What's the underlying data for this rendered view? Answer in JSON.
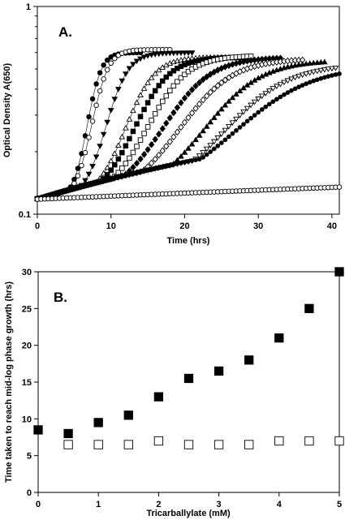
{
  "chart_data": [
    {
      "type": "line",
      "panel_label": "A.",
      "xlabel": "Time (hrs)",
      "ylabel": "Optical Density A(650)",
      "xlim": [
        0,
        41
      ],
      "ylim": [
        0.1,
        1
      ],
      "yscale": "log",
      "x_ticks": [
        0,
        10,
        20,
        30,
        40
      ],
      "y_tick_labels": [
        "0.1",
        "1"
      ],
      "grid": false,
      "series": [
        {
          "marker": "circle-filled",
          "lag": 7.5,
          "rate": 2.2,
          "maxOD": 0.6,
          "end": 14
        },
        {
          "marker": "circle-open",
          "lag": 8.3,
          "rate": 1.85,
          "maxOD": 0.62,
          "end": 18
        },
        {
          "marker": "triangle-down-filled",
          "lag": 10.5,
          "rate": 1.4,
          "maxOD": 0.6,
          "end": 21
        },
        {
          "marker": "triangle-up-open",
          "lag": 13.5,
          "rate": 1.05,
          "maxOD": 0.57,
          "end": 26
        },
        {
          "marker": "square-filled",
          "lag": 15.0,
          "rate": 0.88,
          "maxOD": 0.57,
          "end": 28
        },
        {
          "marker": "square-open",
          "lag": 17.0,
          "rate": 0.78,
          "maxOD": 0.58,
          "end": 29
        },
        {
          "marker": "diamond-filled",
          "lag": 19.5,
          "rate": 0.64,
          "maxOD": 0.57,
          "end": 33
        },
        {
          "marker": "diamond-open",
          "lag": 22.0,
          "rate": 0.58,
          "maxOD": 0.56,
          "end": 36
        },
        {
          "marker": "triangle-up-filled",
          "lag": 25.5,
          "rate": 0.54,
          "maxOD": 0.55,
          "end": 39
        },
        {
          "marker": "triangle-down-open",
          "lag": 28.5,
          "rate": 0.47,
          "maxOD": 0.53,
          "end": 40.5
        },
        {
          "marker": "circle-filled-small",
          "lag": 30.5,
          "rate": 0.39,
          "maxOD": 0.52,
          "end": 41
        },
        {
          "marker": "hexagon-open",
          "linear_from": 0.118,
          "linear_to": 0.135,
          "end": 41
        }
      ]
    },
    {
      "type": "scatter",
      "panel_label": "B.",
      "xlabel": "Tricarballylate (mM)",
      "ylabel": "Time taken to reach mid-log phase growth (hrs)",
      "xlim": [
        0,
        5
      ],
      "ylim": [
        0,
        30
      ],
      "x_ticks": [
        0,
        1,
        2,
        3,
        4,
        5
      ],
      "y_ticks": [
        0,
        5,
        10,
        15,
        20,
        25,
        30
      ],
      "grid": false,
      "series": [
        {
          "marker": "square-filled",
          "x": [
            0,
            0.5,
            1,
            1.5,
            2,
            2.5,
            3,
            3.5,
            4,
            4.5,
            5
          ],
          "y": [
            8.5,
            8.0,
            9.5,
            10.5,
            13.0,
            15.5,
            16.5,
            18.0,
            21.0,
            25.0,
            30.0
          ]
        },
        {
          "marker": "square-open",
          "x": [
            0.5,
            1,
            1.5,
            2,
            2.5,
            3,
            3.5,
            4,
            4.5,
            5
          ],
          "y": [
            6.5,
            6.5,
            6.5,
            7.0,
            6.5,
            6.5,
            6.5,
            7.0,
            7.0,
            7.0
          ]
        }
      ]
    }
  ]
}
